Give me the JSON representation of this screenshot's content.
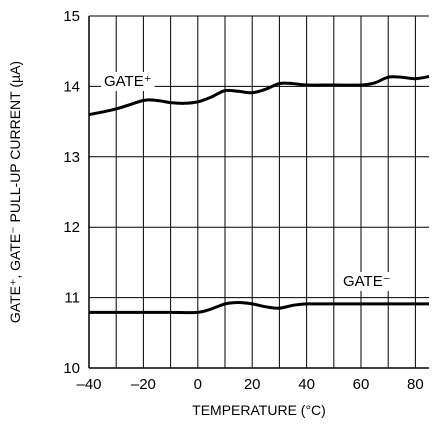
{
  "chart_data": {
    "type": "line",
    "title": "",
    "xlabel": "TEMPERATURE (°C)",
    "ylabel": "GATE⁺, GATE⁻ PULL-UP CURRENT (µA)",
    "xlim": [
      -40,
      85
    ],
    "ylim": [
      10,
      15
    ],
    "x_ticks": [
      -40,
      -20,
      0,
      20,
      40,
      60,
      80
    ],
    "x_tick_labels": [
      "–40",
      "–20",
      "0",
      "20",
      "40",
      "60",
      "80"
    ],
    "y_ticks": [
      10,
      11,
      12,
      13,
      14,
      15
    ],
    "y_tick_labels": [
      "10",
      "11",
      "12",
      "13",
      "14",
      "15"
    ],
    "x_minor_grid_step": 10,
    "grid": true,
    "legend": "none",
    "series": [
      {
        "name": "GATE⁺",
        "color": "#000000",
        "x": [
          -40,
          -30,
          -20,
          -15,
          -10,
          -5,
          0,
          5,
          10,
          15,
          20,
          25,
          30,
          35,
          40,
          50,
          60,
          65,
          70,
          75,
          80,
          85
        ],
        "y": [
          13.6,
          13.68,
          13.8,
          13.8,
          13.77,
          13.76,
          13.78,
          13.85,
          13.94,
          13.93,
          13.91,
          13.96,
          14.04,
          14.04,
          14.02,
          14.02,
          14.02,
          14.05,
          14.13,
          14.13,
          14.11,
          14.14
        ]
      },
      {
        "name": "GATE⁻",
        "color": "#000000",
        "x": [
          -40,
          -30,
          -20,
          -10,
          0,
          5,
          10,
          15,
          20,
          25,
          30,
          35,
          40,
          50,
          60,
          70,
          80,
          85
        ],
        "y": [
          10.79,
          10.79,
          10.79,
          10.79,
          10.79,
          10.84,
          10.91,
          10.93,
          10.91,
          10.87,
          10.85,
          10.89,
          10.91,
          10.91,
          10.91,
          10.91,
          10.91,
          10.91
        ]
      }
    ],
    "annotations": [
      {
        "text": "GATE⁺",
        "series": 0
      },
      {
        "text": "GATE⁻",
        "series": 1
      }
    ]
  }
}
